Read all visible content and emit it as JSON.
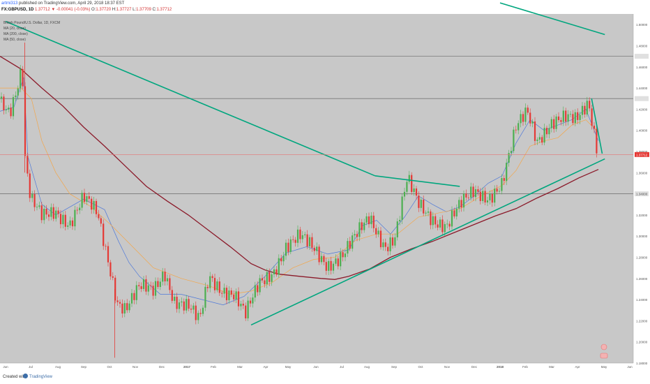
{
  "header": {
    "username": "artmi313",
    "published_text": "published on TradingView.com, April 29, 2018 18:37 EST",
    "symbol": "FX:GBPUSD, 1D",
    "last": "1.37712",
    "change": "▼ -0.00041 (-0.03%)",
    "o_label": "O:",
    "o_value": "1.37720",
    "h_label": "H:",
    "h_value": "1.37727",
    "l_label": "L:",
    "l_value": "1.37709",
    "c_label": "C:",
    "c_value": "1.37712"
  },
  "legend": {
    "title": "British Pound/U.S. Dollar, 1D, FXCM",
    "ma1": "MA (20, close)",
    "ma2": "MA (200, close)",
    "ma3": "MA (50, close)"
  },
  "footer": {
    "created_with": "Created with",
    "brand": "TradingView"
  },
  "colors": {
    "background": "#c8c8c8",
    "up_candle": "#4caf50",
    "down_candle": "#e53935",
    "trendline": "#00a67e",
    "ma20": "#4f79d9",
    "ma50": "#f3a64a",
    "ma200": "#8b1a2a",
    "hline": "#787878",
    "last_price": "#e57373"
  },
  "chart_data": {
    "type": "candlestick",
    "title": "British Pound/U.S. Dollar, 1D, FXCM",
    "x_ticks": [
      "Jun",
      "Jul",
      "Aug",
      "Sep",
      "Oct",
      "Nov",
      "Dec",
      "2017",
      "Feb",
      "Mar",
      "Apr",
      "May",
      "Jun",
      "Jul",
      "Aug",
      "Sep",
      "Oct",
      "Nov",
      "Dec",
      "2018",
      "Feb",
      "Mar",
      "Apr",
      "May",
      "Jun"
    ],
    "y_ticks": [
      "1.50000",
      "1.48000",
      "1.46000",
      "1.44000",
      "1.42000",
      "1.40000",
      "1.38000",
      "1.36000",
      "1.34000",
      "1.32000",
      "1.30000",
      "1.28000",
      "1.26000",
      "1.24000",
      "1.22000",
      "1.20000",
      "1.18000"
    ],
    "y_range": [
      1.18,
      1.51
    ],
    "last_price": 1.37712,
    "horizontal_levels": [
      1.47,
      1.43,
      1.34
    ],
    "trendlines": [
      {
        "from": [
          "2016-05-30",
          1.503
        ],
        "to": [
          "2017-08-10",
          1.357
        ]
      },
      {
        "from": [
          "2017-08-10",
          1.357
        ],
        "to": [
          "2017-11-15",
          1.347
        ]
      },
      {
        "from": [
          "2017-03-14",
          1.216
        ],
        "to": [
          "2018-05-02",
          1.373
        ]
      },
      {
        "from": [
          "2018-01-01",
          1.5205
        ],
        "to": [
          "2018-05-02",
          1.4905
        ]
      },
      {
        "from": [
          "2018-04-17",
          1.43
        ],
        "to": [
          "2018-04-29",
          1.378
        ]
      }
    ],
    "series": [
      {
        "name": "MA (20, close)",
        "values": [
          [
            0,
            1.418
          ],
          [
            20,
            1.422
          ],
          [
            34,
            1.45
          ],
          [
            40,
            1.375
          ],
          [
            60,
            1.33
          ],
          [
            80,
            1.32
          ],
          [
            120,
            1.335
          ],
          [
            150,
            1.325
          ],
          [
            170,
            1.295
          ],
          [
            185,
            1.275
          ],
          [
            200,
            1.262
          ],
          [
            230,
            1.245
          ],
          [
            260,
            1.245
          ],
          [
            290,
            1.24
          ],
          [
            320,
            1.235
          ],
          [
            350,
            1.243
          ],
          [
            380,
            1.262
          ],
          [
            410,
            1.284
          ],
          [
            440,
            1.29
          ],
          [
            470,
            1.283
          ],
          [
            500,
            1.287
          ],
          [
            520,
            1.31
          ],
          [
            540,
            1.315
          ],
          [
            560,
            1.302
          ],
          [
            580,
            1.318
          ],
          [
            600,
            1.338
          ],
          [
            620,
            1.33
          ],
          [
            640,
            1.323
          ],
          [
            660,
            1.328
          ],
          [
            680,
            1.338
          ],
          [
            700,
            1.35
          ],
          [
            720,
            1.357
          ],
          [
            740,
            1.388
          ],
          [
            760,
            1.41
          ],
          [
            780,
            1.4
          ],
          [
            800,
            1.405
          ],
          [
            820,
            1.41
          ],
          [
            840,
            1.42
          ],
          [
            858,
            1.39
          ]
        ]
      },
      {
        "name": "MA (50, close)",
        "values": [
          [
            0,
            1.44
          ],
          [
            30,
            1.44
          ],
          [
            45,
            1.43
          ],
          [
            60,
            1.39
          ],
          [
            80,
            1.36
          ],
          [
            100,
            1.34
          ],
          [
            130,
            1.328
          ],
          [
            160,
            1.31
          ],
          [
            190,
            1.29
          ],
          [
            220,
            1.27
          ],
          [
            260,
            1.26
          ],
          [
            300,
            1.253
          ],
          [
            330,
            1.245
          ],
          [
            360,
            1.248
          ],
          [
            390,
            1.256
          ],
          [
            420,
            1.27
          ],
          [
            450,
            1.278
          ],
          [
            480,
            1.28
          ],
          [
            510,
            1.296
          ],
          [
            540,
            1.302
          ],
          [
            570,
            1.302
          ],
          [
            600,
            1.318
          ],
          [
            630,
            1.322
          ],
          [
            660,
            1.326
          ],
          [
            690,
            1.338
          ],
          [
            720,
            1.348
          ],
          [
            740,
            1.362
          ],
          [
            760,
            1.385
          ],
          [
            780,
            1.39
          ],
          [
            800,
            1.393
          ],
          [
            820,
            1.405
          ],
          [
            840,
            1.41
          ],
          [
            858,
            1.398
          ]
        ]
      },
      {
        "name": "MA (200, close)",
        "values": [
          [
            0,
            1.47
          ],
          [
            30,
            1.458
          ],
          [
            60,
            1.44
          ],
          [
            90,
            1.423
          ],
          [
            120,
            1.403
          ],
          [
            150,
            1.385
          ],
          [
            180,
            1.366
          ],
          [
            210,
            1.347
          ],
          [
            240,
            1.333
          ],
          [
            270,
            1.32
          ],
          [
            300,
            1.305
          ],
          [
            330,
            1.29
          ],
          [
            360,
            1.274
          ],
          [
            380,
            1.268
          ],
          [
            400,
            1.264
          ],
          [
            430,
            1.262
          ],
          [
            460,
            1.26
          ],
          [
            480,
            1.259
          ],
          [
            500,
            1.262
          ],
          [
            530,
            1.269
          ],
          [
            560,
            1.28
          ],
          [
            590,
            1.288
          ],
          [
            620,
            1.295
          ],
          [
            650,
            1.303
          ],
          [
            680,
            1.311
          ],
          [
            710,
            1.319
          ],
          [
            740,
            1.326
          ],
          [
            770,
            1.336
          ],
          [
            800,
            1.345
          ],
          [
            830,
            1.355
          ],
          [
            858,
            1.363
          ]
        ]
      }
    ],
    "ohlc_approx": [
      {
        "date": "2016-06",
        "range": [
          1.41,
          1.47
        ]
      },
      {
        "date": "2016-06-24",
        "range": [
          1.36,
          1.48
        ]
      },
      {
        "date": "2016-07",
        "range": [
          1.29,
          1.35
        ]
      },
      {
        "date": "2016-08",
        "range": [
          1.3,
          1.33
        ]
      },
      {
        "date": "2016-09",
        "range": [
          1.3,
          1.34
        ]
      },
      {
        "date": "2016-10-07",
        "range": [
          1.19,
          1.29
        ]
      },
      {
        "date": "2016-11",
        "range": [
          1.22,
          1.26
        ]
      },
      {
        "date": "2016-12",
        "range": [
          1.24,
          1.28
        ]
      },
      {
        "date": "2017-01",
        "range": [
          1.2,
          1.26
        ]
      },
      {
        "date": "2017-02",
        "range": [
          1.23,
          1.26
        ]
      },
      {
        "date": "2017-03",
        "range": [
          1.21,
          1.25
        ]
      },
      {
        "date": "2017-04",
        "range": [
          1.24,
          1.29
        ]
      },
      {
        "date": "2017-05",
        "range": [
          1.28,
          1.3
        ]
      },
      {
        "date": "2017-06",
        "range": [
          1.26,
          1.29
        ]
      },
      {
        "date": "2017-07",
        "range": [
          1.28,
          1.31
        ]
      },
      {
        "date": "2017-08",
        "range": [
          1.28,
          1.33
        ]
      },
      {
        "date": "2017-09",
        "range": [
          1.3,
          1.36
        ]
      },
      {
        "date": "2017-10",
        "range": [
          1.31,
          1.34
        ]
      },
      {
        "date": "2017-11",
        "range": [
          1.31,
          1.35
        ]
      },
      {
        "date": "2017-12",
        "range": [
          1.33,
          1.36
        ]
      },
      {
        "date": "2018-01",
        "range": [
          1.35,
          1.43
        ]
      },
      {
        "date": "2018-02",
        "range": [
          1.38,
          1.42
        ]
      },
      {
        "date": "2018-03",
        "range": [
          1.38,
          1.42
        ]
      },
      {
        "date": "2018-04",
        "range": [
          1.376,
          1.437
        ]
      }
    ]
  }
}
